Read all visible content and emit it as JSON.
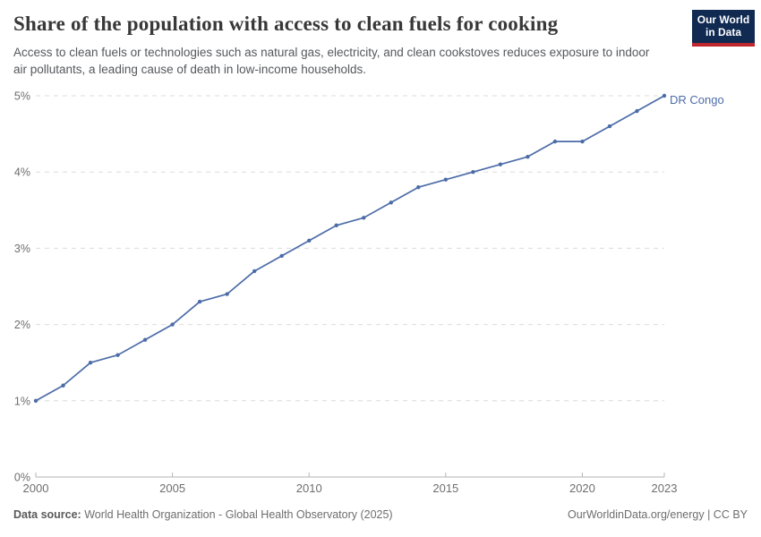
{
  "header": {
    "title": "Share of the population with access to clean fuels for cooking",
    "subtitle": "Access to clean fuels or technologies such as natural gas, electricity, and clean cookstoves reduces exposure to indoor air pollutants, a leading cause of death in low-income households."
  },
  "logo": {
    "line1": "Our World",
    "line2": "in Data",
    "bg_color": "#102a52",
    "accent_color": "#c0272d"
  },
  "chart_data": {
    "type": "line",
    "title": "Share of the population with access to clean fuels for cooking",
    "xlabel": "",
    "ylabel": "",
    "xlim": [
      2000,
      2023
    ],
    "ylim": [
      0,
      5
    ],
    "grid": "dashed-horizontal",
    "legend_position": "end-of-line-label",
    "x_ticks": [
      2000,
      2005,
      2010,
      2015,
      2020,
      2023
    ],
    "y_ticks": [
      0,
      1,
      2,
      3,
      4,
      5
    ],
    "y_tick_labels": [
      "0%",
      "1%",
      "2%",
      "3%",
      "4%",
      "5%"
    ],
    "series": [
      {
        "name": "DR Congo",
        "color": "#4C6CA8",
        "x": [
          2000,
          2001,
          2002,
          2003,
          2004,
          2005,
          2006,
          2007,
          2008,
          2009,
          2010,
          2011,
          2012,
          2013,
          2014,
          2015,
          2016,
          2017,
          2018,
          2019,
          2020,
          2021,
          2022,
          2023
        ],
        "values": [
          1.0,
          1.2,
          1.5,
          1.6,
          1.8,
          2.0,
          2.3,
          2.4,
          2.7,
          2.9,
          3.1,
          3.3,
          3.4,
          3.6,
          3.8,
          3.9,
          4.0,
          4.1,
          4.2,
          4.4,
          4.4,
          4.6,
          4.8,
          5.0
        ]
      }
    ]
  },
  "colors": {
    "gridline": "#dcdcdc",
    "axis": "#b5b5b5",
    "tick_label": "#6e6e6e"
  },
  "footer": {
    "datasource_label": "Data source:",
    "datasource_value": "World Health Organization - Global Health Observatory (2025)",
    "right_text": "OurWorldinData.org/energy | CC BY"
  }
}
